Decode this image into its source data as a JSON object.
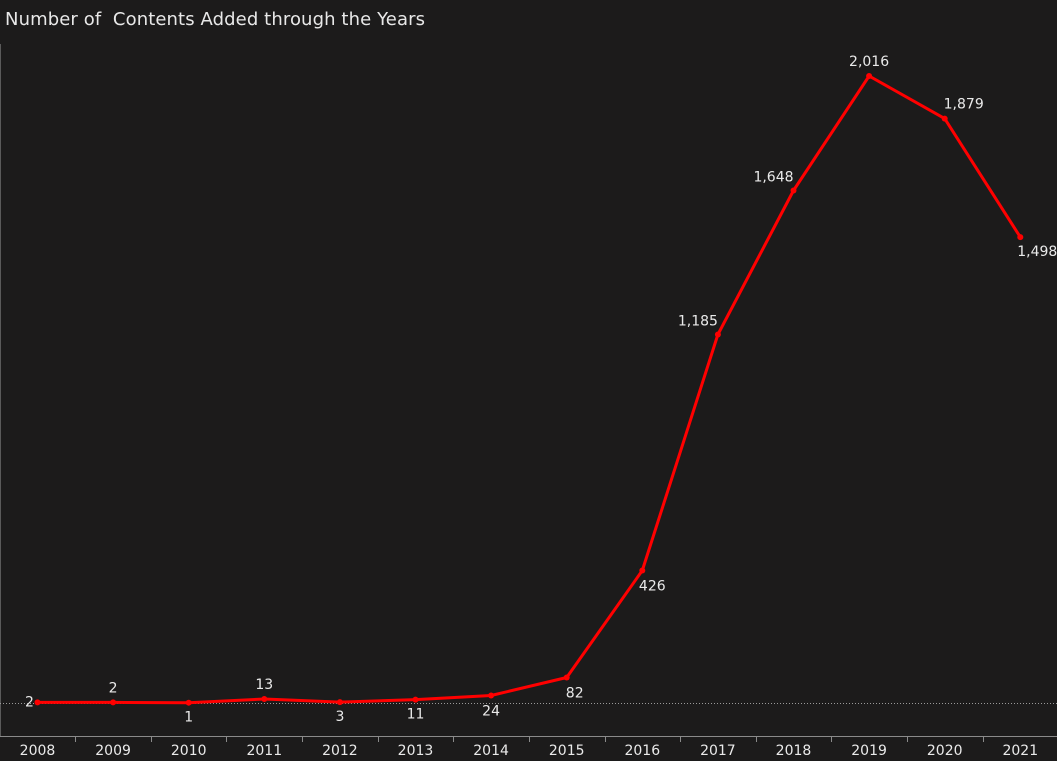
{
  "chart_data": {
    "type": "line",
    "title": "Number of  Contents Added through the Years",
    "xlabel": "",
    "ylabel": "",
    "x": [
      "2008",
      "2009",
      "2010",
      "2011",
      "2012",
      "2013",
      "2014",
      "2015",
      "2016",
      "2017",
      "2018",
      "2019",
      "2020",
      "2021"
    ],
    "series": [
      {
        "values": [
          2,
          2,
          1,
          13,
          3,
          11,
          24,
          82,
          426,
          1185,
          1648,
          2016,
          1879,
          1498
        ],
        "labels": [
          "2",
          "2",
          "1",
          "13",
          "3",
          "11",
          "24",
          "82",
          "426",
          "1,185",
          "1,648",
          "2,016",
          "1,879",
          "1,498"
        ],
        "color": "#ff0000"
      }
    ],
    "ylim": [
      0,
      2016
    ],
    "grid": false,
    "legend": "none",
    "colors": {
      "background": "#1c1b1b",
      "line": "#ff0000",
      "text": "#eaeaea",
      "zero_line": "#9a9a9a"
    }
  }
}
